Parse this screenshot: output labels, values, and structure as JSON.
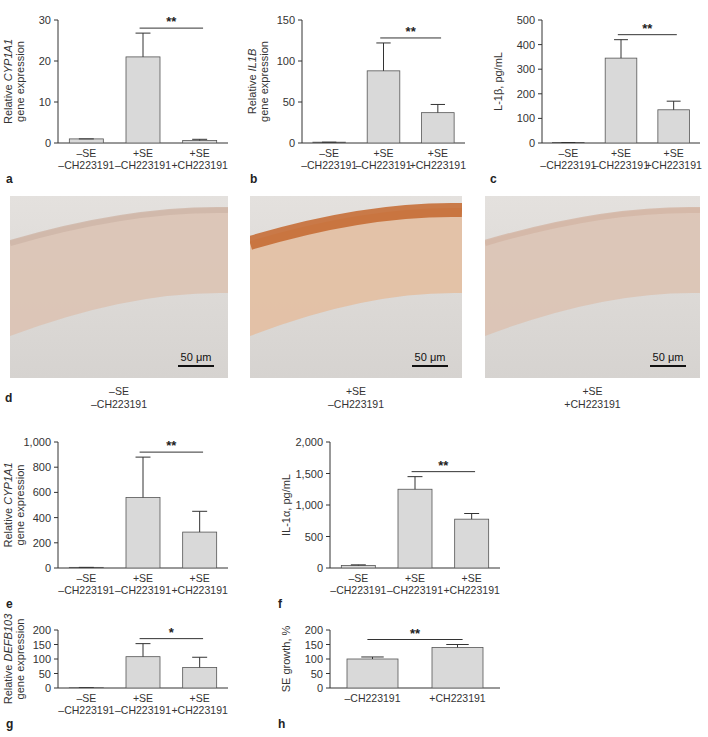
{
  "chart_data": [
    {
      "panel": "a",
      "type": "bar",
      "ylabel": [
        "Relative CYP1A1",
        "gene expression"
      ],
      "categories": [
        "–SE –CH223191",
        "+SE –CH223191",
        "+SE +CH223191"
      ],
      "values": [
        1,
        21,
        0.6
      ],
      "errors": [
        0,
        5.8,
        0.3
      ],
      "color": "#d9d9d9",
      "ylim": [
        0,
        30
      ],
      "yticks": [
        0,
        10,
        20,
        30
      ],
      "annotations": [
        {
          "text": "**",
          "between": [
            "+SE –CH223191",
            "+SE +CH223191"
          ]
        }
      ]
    },
    {
      "panel": "b",
      "type": "bar",
      "ylabel": [
        "Relative IL1B",
        "gene expression"
      ],
      "categories": [
        "–SE –CH223191",
        "+SE –CH223191",
        "+SE +CH223191"
      ],
      "values": [
        1,
        88,
        37
      ],
      "errors": [
        0,
        34,
        10
      ],
      "color": "#d9d9d9",
      "ylim": [
        0,
        150
      ],
      "yticks": [
        0,
        50,
        100,
        150
      ],
      "annotations": [
        {
          "text": "**",
          "between": [
            "+SE –CH223191",
            "+SE +CH223191"
          ]
        }
      ]
    },
    {
      "panel": "c",
      "type": "bar",
      "ylabel": [
        "L-1β, pg/mL"
      ],
      "categories": [
        "–SE –CH223191",
        "+SE –CH223191",
        "+SE +CH223191"
      ],
      "values": [
        2,
        345,
        135
      ],
      "errors": [
        0,
        75,
        35
      ],
      "color": "#d9d9d9",
      "ylim": [
        0,
        500
      ],
      "yticks": [
        0,
        100,
        200,
        300,
        400,
        500
      ],
      "annotations": [
        {
          "text": "**",
          "between": [
            "+SE –CH223191",
            "+SE +CH223191"
          ]
        }
      ]
    },
    {
      "panel": "e",
      "type": "bar",
      "ylabel": [
        "Relative CYP1A1",
        "gene expression"
      ],
      "categories": [
        "–SE –CH223191",
        "+SE –CH223191",
        "+SE +CH223191"
      ],
      "values": [
        5,
        560,
        285
      ],
      "errors": [
        0,
        320,
        165
      ],
      "color": "#d9d9d9",
      "ylim": [
        0,
        1000
      ],
      "yticks": [
        0,
        200,
        400,
        600,
        800,
        {
          "value": 1000,
          "label": "1,000"
        }
      ],
      "annotations": [
        {
          "text": "**",
          "between": [
            "+SE –CH223191",
            "+SE +CH223191"
          ]
        }
      ]
    },
    {
      "panel": "f",
      "type": "bar",
      "ylabel": [
        "IL-1α, pg/mL"
      ],
      "categories": [
        "–SE –CH223191",
        "+SE –CH223191",
        "+SE +CH223191"
      ],
      "values": [
        40,
        1250,
        775
      ],
      "errors": [
        10,
        200,
        90
      ],
      "color": "#d9d9d9",
      "ylim": [
        0,
        2000
      ],
      "yticks": [
        0,
        500,
        {
          "value": 1000,
          "label": "1,000"
        },
        {
          "value": 1500,
          "label": "1,500"
        },
        {
          "value": 2000,
          "label": "2,000"
        }
      ],
      "annotations": [
        {
          "text": "**",
          "between": [
            "+SE –CH223191",
            "+SE +CH223191"
          ]
        }
      ]
    },
    {
      "panel": "g",
      "type": "bar",
      "ylabel": [
        "Relative DEFB103",
        "gene expression"
      ],
      "categories": [
        "–SE –CH223191",
        "+SE –CH223191",
        "+SE +CH223191"
      ],
      "values": [
        1,
        108,
        71
      ],
      "errors": [
        0,
        45,
        35
      ],
      "color": "#d9d9d9",
      "ylim": [
        0,
        200
      ],
      "yticks": [
        0,
        50,
        100,
        150,
        200
      ],
      "annotations": [
        {
          "text": "*",
          "between": [
            "+SE –CH223191",
            "+SE +CH223191"
          ]
        }
      ]
    },
    {
      "panel": "h",
      "type": "bar",
      "ylabel": [
        "SE growth, %"
      ],
      "categories": [
        "–CH223191",
        "+CH223191"
      ],
      "values": [
        100,
        140
      ],
      "errors": [
        7,
        10
      ],
      "color": "#d9d9d9",
      "ylim": [
        0,
        200
      ],
      "yticks": [
        0,
        50,
        100,
        150,
        200
      ],
      "annotations": [
        {
          "text": "**",
          "between": [
            "–CH223191",
            "+CH223191"
          ]
        }
      ]
    }
  ],
  "panel_d": {
    "label": "d",
    "images": [
      {
        "caption": "–SE –CH223191",
        "scale_bar": "50 μm"
      },
      {
        "caption": "+SE –CH223191",
        "scale_bar": "50 μm"
      },
      {
        "caption": "+SE +CH223191",
        "scale_bar": "50 μm"
      }
    ]
  }
}
